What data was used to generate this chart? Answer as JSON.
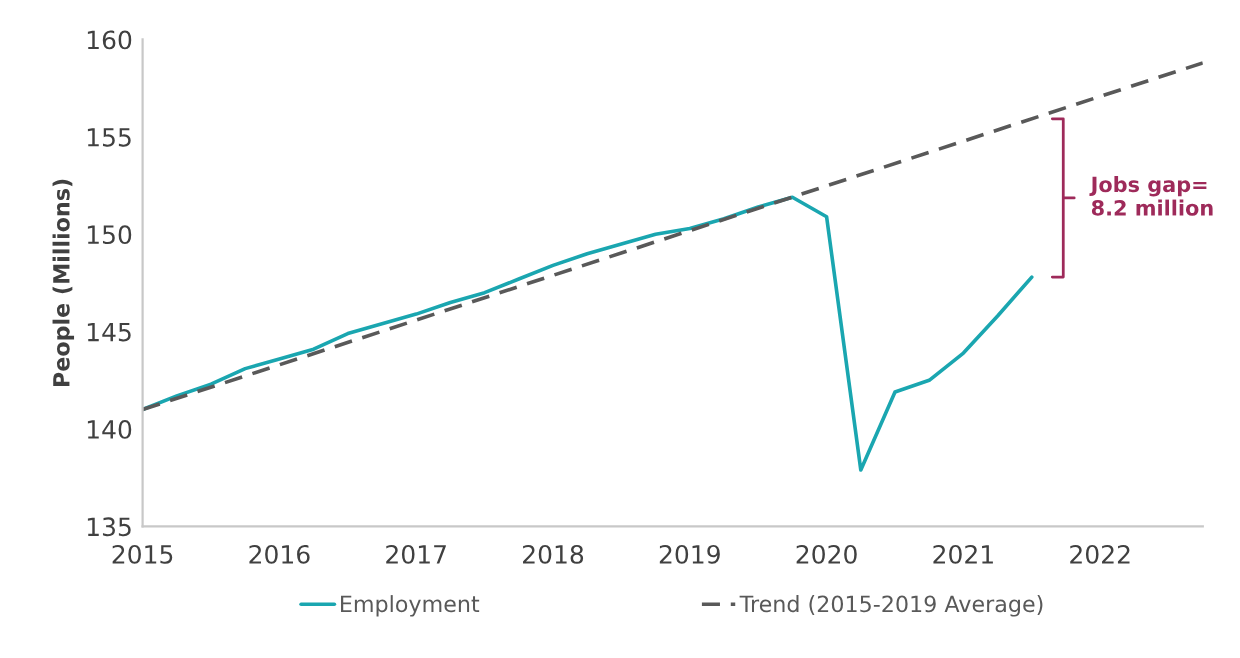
{
  "chart_data": {
    "type": "line",
    "ylabel": "People (Millions)",
    "xlim": [
      2015,
      2022.75
    ],
    "xticks": [
      2015,
      2016,
      2017,
      2018,
      2019,
      2020,
      2021,
      2022
    ],
    "ylim": [
      135,
      160
    ],
    "yticks": [
      135,
      140,
      145,
      150,
      155,
      160
    ],
    "grid": false,
    "legend": "bottom",
    "marker": "none",
    "series": [
      {
        "name": "Employment",
        "color": "#1aa6b0",
        "line_style": "solid",
        "x": [
          2015,
          2015.25,
          2015.5,
          2015.75,
          2016,
          2016.25,
          2016.5,
          2016.75,
          2017,
          2017.25,
          2017.5,
          2017.75,
          2018,
          2018.25,
          2018.5,
          2018.75,
          2019,
          2019.25,
          2019.5,
          2019.75,
          2020,
          2020.25,
          2020.5,
          2020.75,
          2021,
          2021.25,
          2021.5
        ],
        "values": [
          141.0,
          141.7,
          142.3,
          143.1,
          143.6,
          144.1,
          144.9,
          145.4,
          145.9,
          146.5,
          147.0,
          147.7,
          148.4,
          149.0,
          149.5,
          150.0,
          150.3,
          150.8,
          151.4,
          151.9,
          150.9,
          137.9,
          141.9,
          142.5,
          143.9,
          145.8,
          147.8
        ]
      },
      {
        "name": "Trend (2015-2019 Average)",
        "color": "#595959",
        "line_style": "dashed",
        "x": [
          2015,
          2022.75
        ],
        "values": [
          141.0,
          158.8
        ]
      }
    ],
    "annotations": [
      "Jobs gap=\n8.2 million"
    ]
  }
}
